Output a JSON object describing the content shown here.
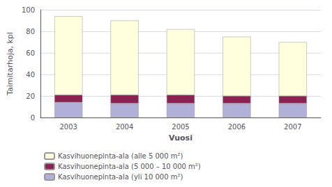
{
  "chart_data": {
    "type": "bar",
    "stacked": true,
    "xlabel": "Vuosi",
    "ylabel": "Taimitarhoja, kpl",
    "categories": [
      "2003",
      "2004",
      "2005",
      "2006",
      "2007"
    ],
    "series": [
      {
        "name": "Kasvihuonepinta-ala (yli 10 000 m²)",
        "color": "#b0b0d8",
        "values": [
          14,
          13,
          13,
          13,
          13
        ]
      },
      {
        "name": "Kasvihuonepinta-ala (5 000 – 10 000 m²)",
        "color": "#8b2252",
        "values": [
          7,
          8,
          8,
          7,
          7
        ]
      },
      {
        "name": "Kasvihuonepinta-ala (alle 5 000 m²)",
        "color": "#ffffdd",
        "values": [
          73,
          69,
          61,
          55,
          50
        ]
      }
    ],
    "ylim": [
      0,
      100
    ],
    "yticks": [
      0,
      20,
      40,
      60,
      80,
      100
    ],
    "grid": true,
    "legend": "lower left"
  }
}
